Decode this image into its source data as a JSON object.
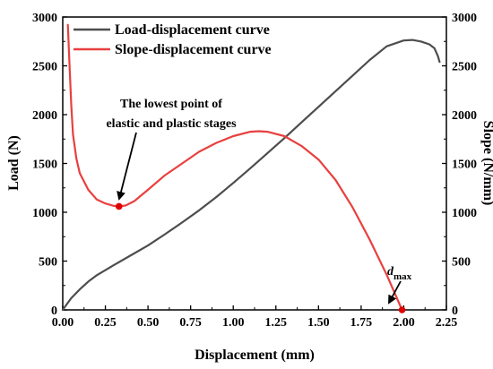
{
  "chart_data": {
    "type": "line",
    "xlabel": "Displacement (mm)",
    "ylabel_left": "Load (N)",
    "ylabel_right": "Slope (N/mm)",
    "xlim": [
      0,
      2.25
    ],
    "ylim_left": [
      0,
      3000
    ],
    "ylim_right": [
      0,
      3000
    ],
    "x_ticks": [
      0,
      0.25,
      0.5,
      0.75,
      1.0,
      1.25,
      1.5,
      1.75,
      2.0,
      2.25
    ],
    "x_tick_labels": [
      "0.00",
      "0.25",
      "0.50",
      "0.75",
      "1.00",
      "1.25",
      "1.50",
      "1.75",
      "2.00",
      "2.25"
    ],
    "y_ticks": [
      0,
      500,
      1000,
      1500,
      2000,
      2500,
      3000
    ],
    "y_tick_labels": [
      "0",
      "500",
      "1000",
      "1500",
      "2000",
      "2500",
      "3000"
    ],
    "legend_position": "top-left",
    "grid": false,
    "series": [
      {
        "name": "Load-displacement curve",
        "axis": "left",
        "color": "#4d4d4d",
        "x": [
          0.0,
          0.02,
          0.05,
          0.1,
          0.15,
          0.2,
          0.3,
          0.4,
          0.5,
          0.6,
          0.7,
          0.8,
          0.9,
          1.0,
          1.1,
          1.2,
          1.3,
          1.4,
          1.5,
          1.6,
          1.7,
          1.8,
          1.9,
          2.0,
          2.05,
          2.1,
          2.15,
          2.18,
          2.2,
          2.21
        ],
        "y": [
          0,
          50,
          120,
          210,
          290,
          355,
          460,
          560,
          660,
          775,
          895,
          1020,
          1155,
          1300,
          1450,
          1605,
          1760,
          1920,
          2080,
          2240,
          2400,
          2560,
          2700,
          2760,
          2765,
          2750,
          2720,
          2680,
          2600,
          2540
        ]
      },
      {
        "name": "Slope-displacement curve",
        "axis": "right",
        "color": "#e8403f",
        "x": [
          0.03,
          0.04,
          0.05,
          0.06,
          0.08,
          0.1,
          0.15,
          0.2,
          0.25,
          0.3,
          0.33,
          0.37,
          0.42,
          0.5,
          0.6,
          0.7,
          0.8,
          0.9,
          1.0,
          1.1,
          1.15,
          1.2,
          1.3,
          1.4,
          1.5,
          1.6,
          1.7,
          1.8,
          1.9,
          1.95,
          1.99
        ],
        "y": [
          2920,
          2500,
          2100,
          1800,
          1550,
          1400,
          1230,
          1130,
          1090,
          1065,
          1060,
          1070,
          1115,
          1230,
          1380,
          1500,
          1620,
          1710,
          1780,
          1825,
          1830,
          1825,
          1780,
          1680,
          1540,
          1330,
          1050,
          720,
          360,
          160,
          0
        ]
      }
    ],
    "highlight_points": [
      {
        "axis": "right",
        "x": 0.33,
        "y": 1060
      },
      {
        "axis": "right",
        "x": 1.99,
        "y": 0
      }
    ],
    "annotations": [
      {
        "lines": [
          "The lowest point of",
          "elastic and plastic stages"
        ],
        "points_to": {
          "x": 0.33,
          "y": 1060
        }
      },
      {
        "text": "d",
        "subscript": "max",
        "points_to": {
          "x": 1.99,
          "y": 0
        }
      }
    ]
  }
}
